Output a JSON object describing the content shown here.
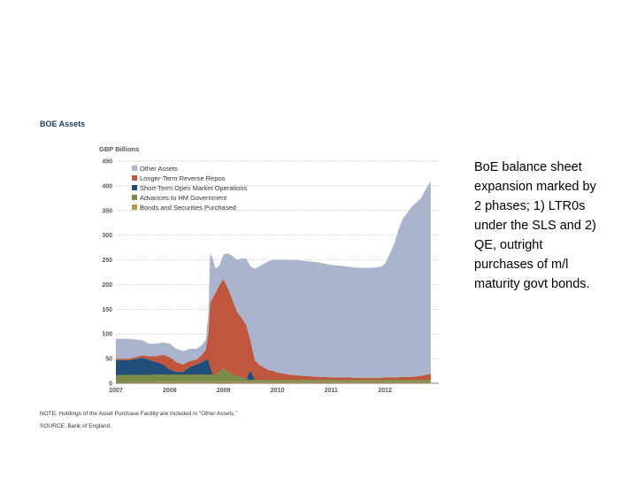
{
  "caption": {
    "lines": [
      "BoE balance sheet",
      "expansion marked by",
      "2 phases;  1) LTR0s",
      "under the SLS and 2)",
      "QE, outright",
      "purchases of m/l",
      "maturity govt bonds."
    ]
  },
  "chart_data": {
    "type": "area",
    "stacked": true,
    "title": "BOE Assets",
    "ylabel": "GBP Billions",
    "xlabel": "",
    "ylim": [
      0,
      450
    ],
    "xlim": [
      2007,
      2013.0
    ],
    "y_ticks": [
      0,
      50,
      100,
      150,
      200,
      250,
      300,
      350,
      400,
      450
    ],
    "x_ticks": [
      "2007",
      "2008",
      "2009",
      "2010",
      "2011",
      "2012"
    ],
    "grid": "horizontal dotted",
    "legend_position": "top-left",
    "note": "NOTE: Holdings of the Asset Purchase Facility are included in \"Other Assets.\"",
    "source": "SOURCE: Bank of England.",
    "x": [
      2007.0,
      2007.25,
      2007.5,
      2007.62,
      2007.75,
      2007.88,
      2008.0,
      2008.12,
      2008.25,
      2008.37,
      2008.5,
      2008.6,
      2008.67,
      2008.72,
      2008.75,
      2008.8,
      2008.85,
      2008.92,
      2009.0,
      2009.08,
      2009.17,
      2009.25,
      2009.33,
      2009.42,
      2009.5,
      2009.58,
      2009.67,
      2009.75,
      2009.83,
      2009.92,
      2010.0,
      2010.25,
      2010.5,
      2010.75,
      2011.0,
      2011.25,
      2011.5,
      2011.75,
      2011.92,
      2012.0,
      2012.17,
      2012.25,
      2012.33,
      2012.5,
      2012.67,
      2012.75,
      2012.85
    ],
    "series": [
      {
        "name": "Bonds and Securities Purchased",
        "color": "#b89a4a",
        "values": [
          2,
          2,
          2,
          2,
          3,
          3,
          3,
          3,
          3,
          3,
          3,
          3,
          3,
          3,
          3,
          3,
          3,
          3,
          3,
          3,
          3,
          3,
          3,
          3,
          3,
          3,
          3,
          3,
          3,
          3,
          3,
          3,
          3,
          3,
          3,
          3,
          3,
          3,
          3,
          3,
          3,
          3,
          3,
          3,
          3,
          3,
          3
        ]
      },
      {
        "name": "Advances to HM Government",
        "color": "#7a8a4a",
        "values": [
          15,
          15,
          15,
          15,
          15,
          15,
          15,
          15,
          15,
          15,
          15,
          15,
          15,
          15,
          15,
          15,
          15,
          20,
          28,
          20,
          15,
          12,
          10,
          5,
          4,
          4,
          4,
          4,
          4,
          4,
          4,
          4,
          4,
          4,
          4,
          4,
          4,
          4,
          4,
          4,
          4,
          4,
          4,
          4,
          4,
          4,
          4
        ]
      },
      {
        "name": "Short-Term Open Market Operations",
        "color": "#1f4e79",
        "values": [
          30,
          30,
          35,
          30,
          25,
          20,
          10,
          5,
          5,
          15,
          20,
          25,
          30,
          30,
          15,
          0,
          0,
          0,
          0,
          0,
          0,
          0,
          0,
          0,
          20,
          0,
          0,
          0,
          0,
          0,
          0,
          0,
          0,
          0,
          0,
          0,
          0,
          0,
          0,
          0,
          0,
          0,
          0,
          0,
          0,
          0,
          0
        ]
      },
      {
        "name": "Longer-Term Reverse Repos",
        "color": "#c0563b",
        "values": [
          3,
          3,
          5,
          8,
          12,
          20,
          25,
          20,
          15,
          12,
          10,
          15,
          20,
          55,
          130,
          155,
          165,
          175,
          180,
          170,
          150,
          130,
          120,
          110,
          60,
          40,
          30,
          25,
          20,
          18,
          15,
          10,
          8,
          6,
          5,
          5,
          4,
          4,
          4,
          5,
          5,
          5,
          6,
          6,
          8,
          10,
          12
        ]
      },
      {
        "name": "Other Assets",
        "color": "#aab4cc",
        "values": [
          40,
          40,
          30,
          25,
          25,
          25,
          27,
          27,
          27,
          25,
          22,
          20,
          20,
          40,
          100,
          80,
          50,
          40,
          50,
          70,
          90,
          105,
          120,
          135,
          150,
          185,
          200,
          210,
          220,
          225,
          228,
          233,
          233,
          232,
          228,
          225,
          223,
          223,
          225,
          230,
          270,
          300,
          320,
          345,
          360,
          375,
          390
        ]
      }
    ]
  }
}
